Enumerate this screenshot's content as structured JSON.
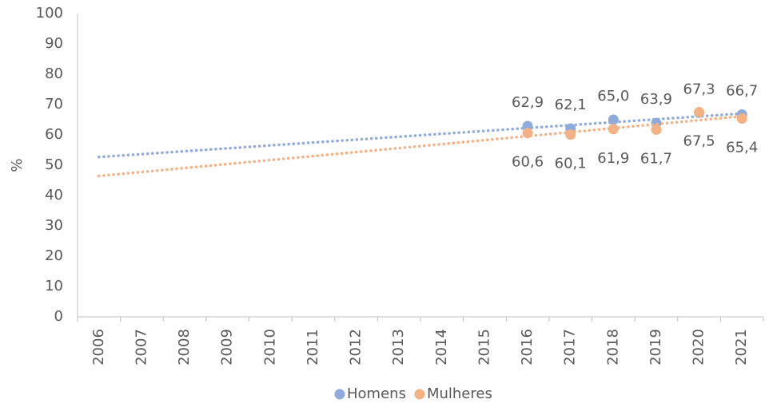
{
  "chart_data": {
    "type": "scatter",
    "ylabel": "%",
    "categories": [
      "2006",
      "2007",
      "2008",
      "2009",
      "2010",
      "2011",
      "2012",
      "2013",
      "2014",
      "2015",
      "2016",
      "2017",
      "2018",
      "2019",
      "2020",
      "2021"
    ],
    "series": [
      {
        "name": "Homens",
        "color": "#8faadc",
        "values": [
          null,
          null,
          null,
          null,
          null,
          null,
          null,
          null,
          null,
          null,
          62.9,
          62.1,
          65.0,
          63.9,
          67.3,
          66.7
        ],
        "value_labels": [
          null,
          null,
          null,
          null,
          null,
          null,
          null,
          null,
          null,
          null,
          "62,9",
          "62,1",
          "65,0",
          "63,9",
          "67,3",
          "66,7"
        ]
      },
      {
        "name": "Mulheres",
        "color": "#f4b183",
        "values": [
          null,
          null,
          null,
          null,
          null,
          null,
          null,
          null,
          null,
          null,
          60.6,
          60.1,
          61.9,
          61.7,
          67.5,
          65.4
        ],
        "value_labels": [
          null,
          null,
          null,
          null,
          null,
          null,
          null,
          null,
          null,
          null,
          "60,6",
          "60,1",
          "61,9",
          "61,7",
          "67,5",
          "65,4"
        ]
      }
    ],
    "trendline": "linear",
    "ylim": [
      0,
      100
    ],
    "yticks": [
      0,
      10,
      20,
      30,
      40,
      50,
      60,
      70,
      80,
      90,
      100
    ],
    "legend": "bottom"
  }
}
